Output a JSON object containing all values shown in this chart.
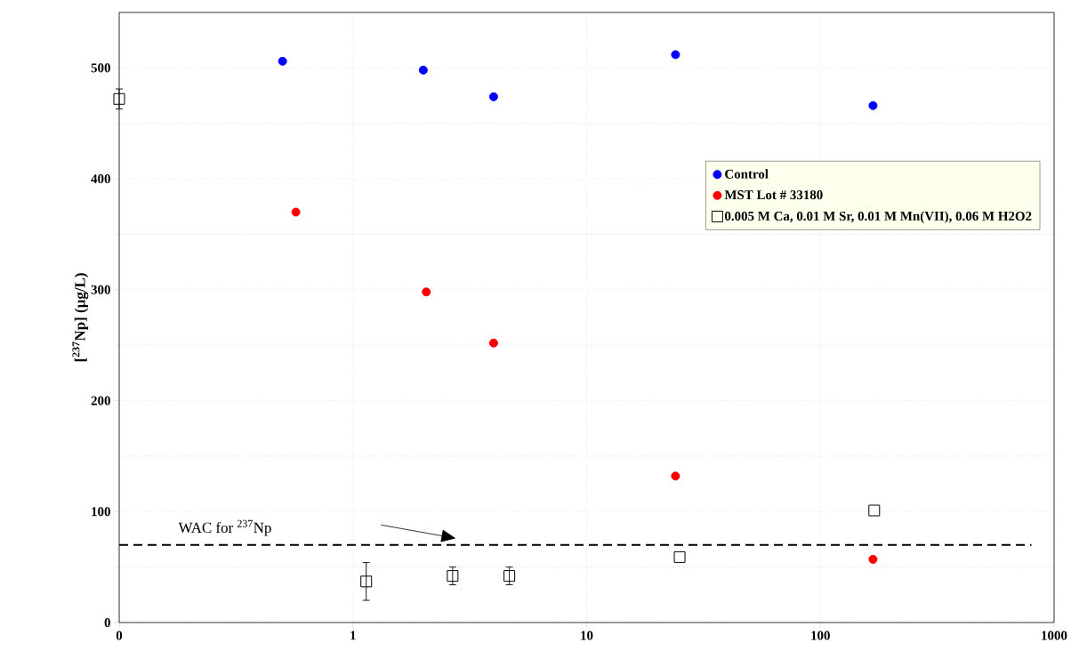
{
  "chart_data": {
    "type": "scatter",
    "ylabel": "[$^{237}$Np]  (µg/L)",
    "x": [
      0.5,
      2,
      4,
      24,
      168
    ],
    "series": [
      {
        "name": "Control",
        "color": "#0000ff",
        "marker": "circle",
        "values": [
          506,
          498,
          474,
          512,
          466
        ]
      },
      {
        "name": "MST Lot # 33180",
        "color": "#ff0000",
        "marker": "circle",
        "x": [
          0.57,
          2.06,
          4,
          24,
          168
        ],
        "values": [
          370,
          298,
          252,
          132,
          57
        ]
      },
      {
        "name": "0.005 M Ca, 0.01 M Sr, 0.01 M Mn(VII), 0.06 M H2O2",
        "color": "#000000",
        "marker": "square",
        "x": [
          0.1,
          1.14,
          2.67,
          4.67,
          25,
          170
        ],
        "values": [
          472,
          37,
          42,
          42,
          59,
          101
        ],
        "errors": [
          9,
          17,
          8,
          8,
          null,
          null
        ]
      }
    ],
    "log": "x",
    "xlim": [
      0.1,
      1000
    ],
    "xticks": [
      {
        "value": 0.1,
        "label": "0"
      },
      1,
      10,
      100,
      1000
    ],
    "ylim": [
      0,
      550
    ],
    "yticks": [
      0,
      100,
      200,
      300,
      400,
      500
    ],
    "ref_lines": [
      {
        "axis": "y",
        "value": 70,
        "label": "WAC for $^{237}$Np",
        "line_style": "dashed",
        "color": "#000000"
      }
    ],
    "grid": true,
    "legend": "right"
  }
}
